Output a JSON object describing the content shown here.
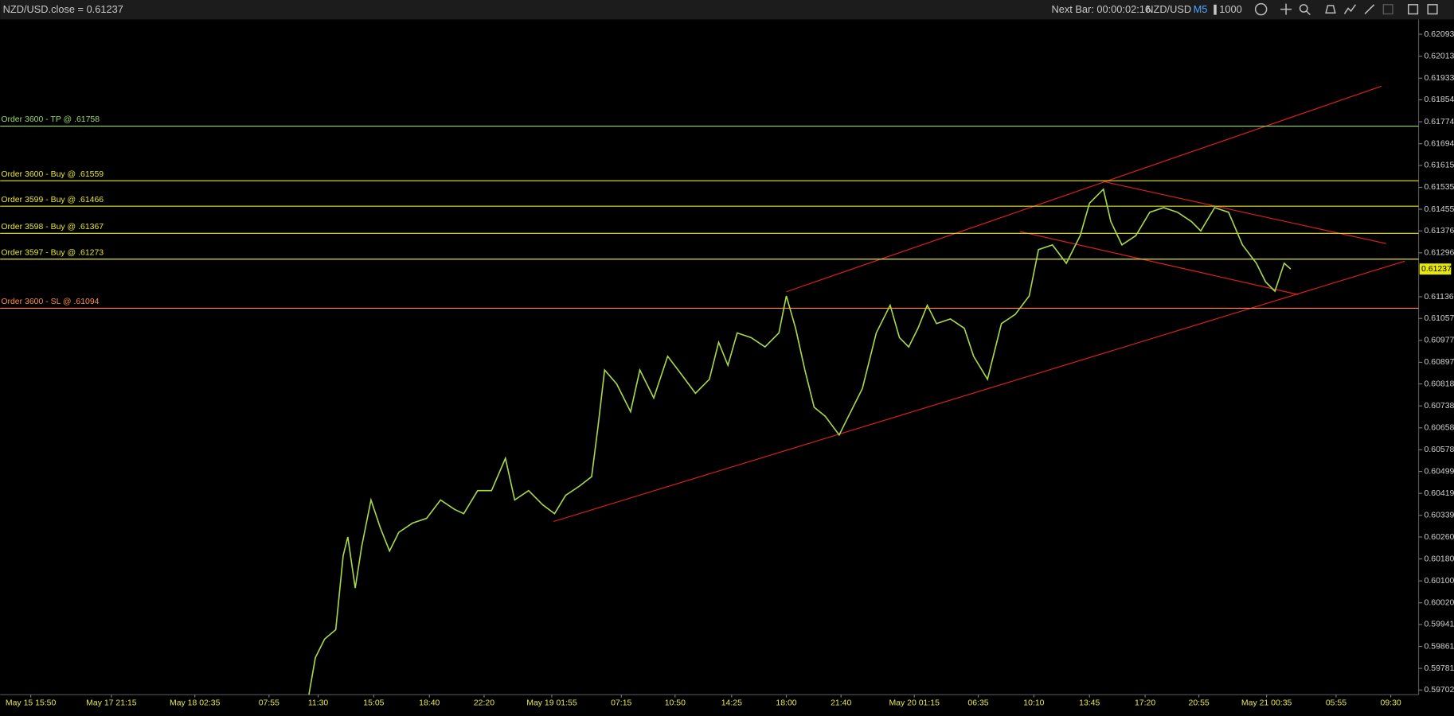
{
  "chart_data": {
    "type": "line",
    "title": "NZD/USD.close = 0.61237",
    "toolbar": {
      "next_bar": "Next Bar: 00:00:02:16",
      "symbol": "NZD/USD",
      "timeframe": "M5",
      "quantity": "1000"
    },
    "last_price": 0.61237,
    "series": [
      {
        "color": "#a8d84a",
        "x": [
          333,
          340,
          350,
          362,
          370,
          375,
          383,
          390,
          400,
          410,
          420,
          430,
          445,
          460,
          475,
          490,
          500,
          515,
          530,
          545,
          555,
          570,
          585,
          598,
          610,
          625,
          638,
          645,
          652,
          665,
          680,
          690,
          705,
          720,
          735,
          750,
          765,
          775,
          785,
          795,
          810,
          825,
          840,
          848,
          858,
          868,
          878,
          890,
          905,
          915,
          930,
          945,
          960,
          970,
          980,
          990,
          1000,
          1010,
          1025,
          1040,
          1050,
          1065,
          1080,
          1095,
          1110,
          1120,
          1135,
          1150,
          1165,
          1175,
          1190,
          1198,
          1210,
          1225,
          1240,
          1255,
          1270,
          1285,
          1295,
          1310,
          1325,
          1340,
          1355,
          1365,
          1375,
          1385,
          1392
        ],
        "values": [
          0.59685,
          0.5982,
          0.59888,
          0.59922,
          0.60192,
          0.6026,
          0.60074,
          0.60226,
          0.60395,
          0.60294,
          0.60209,
          0.60277,
          0.60311,
          0.60328,
          0.60395,
          0.60361,
          0.60345,
          0.60429,
          0.60429,
          0.60547,
          0.60395,
          0.60429,
          0.60378,
          0.60345,
          0.60412,
          0.60446,
          0.6048,
          0.60666,
          0.60869,
          0.60818,
          0.60717,
          0.60869,
          0.60767,
          0.60919,
          0.60852,
          0.60784,
          0.60835,
          0.6097,
          0.60886,
          0.61004,
          0.60987,
          0.60953,
          0.61004,
          0.61139,
          0.61021,
          0.60869,
          0.60733,
          0.607,
          0.60632,
          0.607,
          0.60801,
          0.61004,
          0.61105,
          0.60987,
          0.60953,
          0.61021,
          0.61105,
          0.61038,
          0.61055,
          0.61021,
          0.60919,
          0.60835,
          0.61038,
          0.61072,
          0.61139,
          0.61308,
          0.61325,
          0.61258,
          0.61359,
          0.61477,
          0.61528,
          0.6141,
          0.61325,
          0.61359,
          0.61444,
          0.61461,
          0.61444,
          0.6141,
          0.61376,
          0.61461,
          0.61444,
          0.61325,
          0.61258,
          0.6119,
          0.61156,
          0.61258,
          0.61237
        ]
      }
    ],
    "xlim": [
      0,
      1530
    ],
    "ylim": [
      0.59685,
      0.62147
    ],
    "xticks": [
      {
        "value": 33,
        "label": "May 15 15:50"
      },
      {
        "value": 120,
        "label": "May 17 21:15"
      },
      {
        "value": 210,
        "label": "May 18 02:35"
      },
      {
        "value": 290,
        "label": "07:55"
      },
      {
        "value": 343,
        "label": "11:30"
      },
      {
        "value": 403,
        "label": "15:05"
      },
      {
        "value": 463,
        "label": "18:40"
      },
      {
        "value": 522,
        "label": "22:20"
      },
      {
        "value": 595,
        "label": "May 19 01:55"
      },
      {
        "value": 670,
        "label": "07:15"
      },
      {
        "value": 728,
        "label": "10:50"
      },
      {
        "value": 789,
        "label": "14:25"
      },
      {
        "value": 848,
        "label": "18:00"
      },
      {
        "value": 907,
        "label": "21:40"
      },
      {
        "value": 986,
        "label": "May 20 01:15"
      },
      {
        "value": 1055,
        "label": "06:35"
      },
      {
        "value": 1115,
        "label": "10:10"
      },
      {
        "value": 1175,
        "label": "13:45"
      },
      {
        "value": 1235,
        "label": "17:20"
      },
      {
        "value": 1293,
        "label": "20:55"
      },
      {
        "value": 1366,
        "label": "May 21 00:35"
      },
      {
        "value": 1441,
        "label": "05:55"
      },
      {
        "value": 1500,
        "label": "09:30"
      }
    ],
    "yticks": [
      0.62093,
      0.62013,
      0.61933,
      0.61854,
      0.61774,
      0.61694,
      0.61615,
      0.61535,
      0.61455,
      0.61376,
      0.61296,
      0.61136,
      0.61057,
      0.60977,
      0.60897,
      0.60818,
      0.60738,
      0.60658,
      0.60578,
      0.60499,
      0.60419,
      0.60339,
      {
        "value": 0.6026,
        "label": "0.60260"
      },
      {
        "value": 0.6018,
        "label": "0.60180"
      },
      {
        "value": 0.601,
        "label": "0.60100"
      },
      {
        "value": 0.6002,
        "label": "0.60020"
      },
      0.59941,
      0.59861,
      0.59781,
      0.59702
    ],
    "orders": [
      {
        "label": "Order 3600 - TP @ .61758",
        "value": 0.61758,
        "color": "#9bd86a"
      },
      {
        "label": "Order 3600 - Buy @ .61559",
        "value": 0.61559,
        "color": "#e6e62a"
      },
      {
        "label": "Order 3599 - Buy @ .61466",
        "value": 0.61466,
        "color": "#e6e62a"
      },
      {
        "label": "Order 3598 - Buy @ .61367",
        "value": 0.61367,
        "color": "#e6e62a"
      },
      {
        "label": "Order 3597 - Buy @ .61273",
        "value": 0.61273,
        "color": "#e6e62a"
      },
      {
        "label": "Order 3600 - SL @ .61094",
        "value": 0.61094,
        "color": "#ff8c42"
      }
    ]
  }
}
